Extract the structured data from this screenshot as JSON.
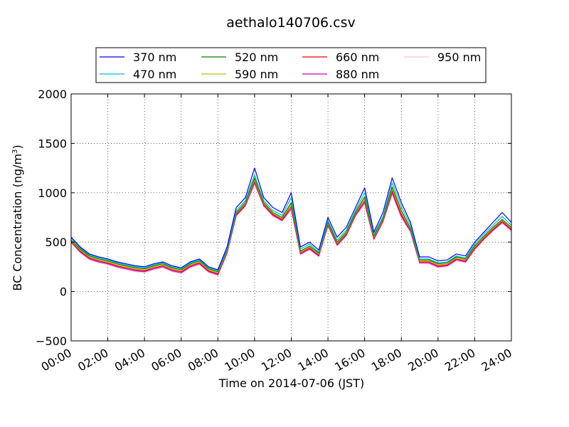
{
  "chart_data": {
    "type": "line",
    "title": "aethalo140706.csv",
    "xlabel": "Time on 2014-07-06 (JST)",
    "ylabel": "BC Concentration (ng/m",
    "ylabel_sup": "3",
    "ylabel_suffix": ")",
    "xlim": [
      0,
      24
    ],
    "ylim": [
      -500,
      2000
    ],
    "x_unit": "hours",
    "grid": true,
    "legend_placement": "top-center",
    "x_ticks": [
      0,
      2,
      4,
      6,
      8,
      10,
      12,
      14,
      16,
      18,
      20,
      22,
      24
    ],
    "x_tick_labels": [
      "00:00",
      "02:00",
      "04:00",
      "06:00",
      "08:00",
      "10:00",
      "12:00",
      "14:00",
      "16:00",
      "18:00",
      "20:00",
      "22:00",
      "24:00"
    ],
    "y_ticks": [
      -500,
      0,
      500,
      1000,
      1500,
      2000
    ],
    "y_tick_labels": [
      "−500",
      "0",
      "500",
      "1000",
      "1500",
      "2000"
    ],
    "x": [
      0,
      0.5,
      1,
      1.5,
      2,
      2.5,
      3,
      3.5,
      4,
      4.5,
      5,
      5.5,
      6,
      6.5,
      7,
      7.5,
      8,
      8.5,
      9,
      9.5,
      10,
      10.5,
      11,
      11.5,
      12,
      12.5,
      13,
      13.5,
      14,
      14.5,
      15,
      15.5,
      16,
      16.5,
      17,
      17.5,
      18,
      18.5,
      19,
      19.5,
      20,
      20.5,
      21,
      21.5,
      22,
      22.5,
      23,
      23.5,
      24
    ],
    "series": [
      {
        "name": "370 nm",
        "color": "#0000ff",
        "values": [
          550,
          450,
          380,
          350,
          330,
          300,
          280,
          260,
          250,
          280,
          300,
          260,
          240,
          300,
          330,
          250,
          220,
          450,
          850,
          950,
          1250,
          950,
          850,
          800,
          1000,
          450,
          500,
          420,
          750,
          550,
          650,
          850,
          1050,
          600,
          800,
          1150,
          900,
          700,
          350,
          350,
          310,
          320,
          380,
          360,
          500,
          600,
          700,
          800,
          700
        ]
      },
      {
        "name": "470 nm",
        "color": "#00bfbf",
        "values": [
          540,
          440,
          370,
          340,
          320,
          290,
          270,
          250,
          240,
          270,
          290,
          250,
          230,
          290,
          320,
          240,
          210,
          430,
          820,
          920,
          1180,
          920,
          820,
          770,
          950,
          430,
          480,
          400,
          720,
          520,
          620,
          820,
          1000,
          580,
          760,
          1100,
          860,
          670,
          330,
          330,
          290,
          300,
          360,
          340,
          480,
          580,
          670,
          760,
          670
        ]
      },
      {
        "name": "520 nm",
        "color": "#008000",
        "values": [
          520,
          430,
          360,
          330,
          310,
          280,
          260,
          240,
          230,
          260,
          280,
          240,
          220,
          280,
          310,
          230,
          200,
          420,
          800,
          900,
          1150,
          900,
          800,
          750,
          900,
          410,
          460,
          390,
          700,
          500,
          600,
          800,
          960,
          560,
          740,
          1060,
          820,
          640,
          320,
          320,
          280,
          290,
          350,
          330,
          460,
          560,
          650,
          730,
          650
        ]
      },
      {
        "name": "590 nm",
        "color": "#bfbf00",
        "values": [
          510,
          420,
          350,
          320,
          300,
          270,
          250,
          230,
          220,
          250,
          270,
          230,
          210,
          270,
          300,
          220,
          190,
          410,
          790,
          890,
          1130,
          890,
          790,
          740,
          880,
          400,
          450,
          380,
          690,
          490,
          590,
          790,
          940,
          550,
          730,
          1040,
          800,
          630,
          310,
          310,
          270,
          280,
          340,
          320,
          450,
          550,
          640,
          720,
          640
        ]
      },
      {
        "name": "660 nm",
        "color": "#ff0000",
        "values": [
          500,
          410,
          340,
          310,
          290,
          260,
          240,
          220,
          210,
          240,
          260,
          220,
          200,
          260,
          290,
          210,
          180,
          400,
          780,
          880,
          1120,
          880,
          780,
          730,
          860,
          390,
          440,
          370,
          680,
          480,
          580,
          780,
          920,
          540,
          720,
          1020,
          780,
          620,
          300,
          300,
          260,
          270,
          330,
          310,
          440,
          540,
          630,
          710,
          630
        ]
      },
      {
        "name": "880 nm",
        "color": "#bf00bf",
        "values": [
          500,
          400,
          330,
          300,
          280,
          250,
          230,
          210,
          200,
          230,
          250,
          210,
          190,
          250,
          280,
          200,
          170,
          390,
          770,
          870,
          1100,
          870,
          770,
          720,
          840,
          380,
          430,
          360,
          670,
          470,
          570,
          770,
          900,
          530,
          710,
          1000,
          760,
          610,
          290,
          290,
          250,
          260,
          320,
          300,
          430,
          530,
          620,
          700,
          620
        ]
      },
      {
        "name": "950 nm",
        "color": "#ffc0cb",
        "values": [
          490,
          390,
          320,
          290,
          270,
          240,
          220,
          200,
          190,
          220,
          240,
          200,
          180,
          240,
          270,
          190,
          160,
          380,
          760,
          860,
          1080,
          860,
          760,
          710,
          820,
          370,
          420,
          350,
          660,
          460,
          560,
          760,
          880,
          520,
          700,
          980,
          740,
          600,
          280,
          280,
          240,
          250,
          310,
          290,
          420,
          520,
          610,
          690,
          610
        ]
      }
    ]
  }
}
